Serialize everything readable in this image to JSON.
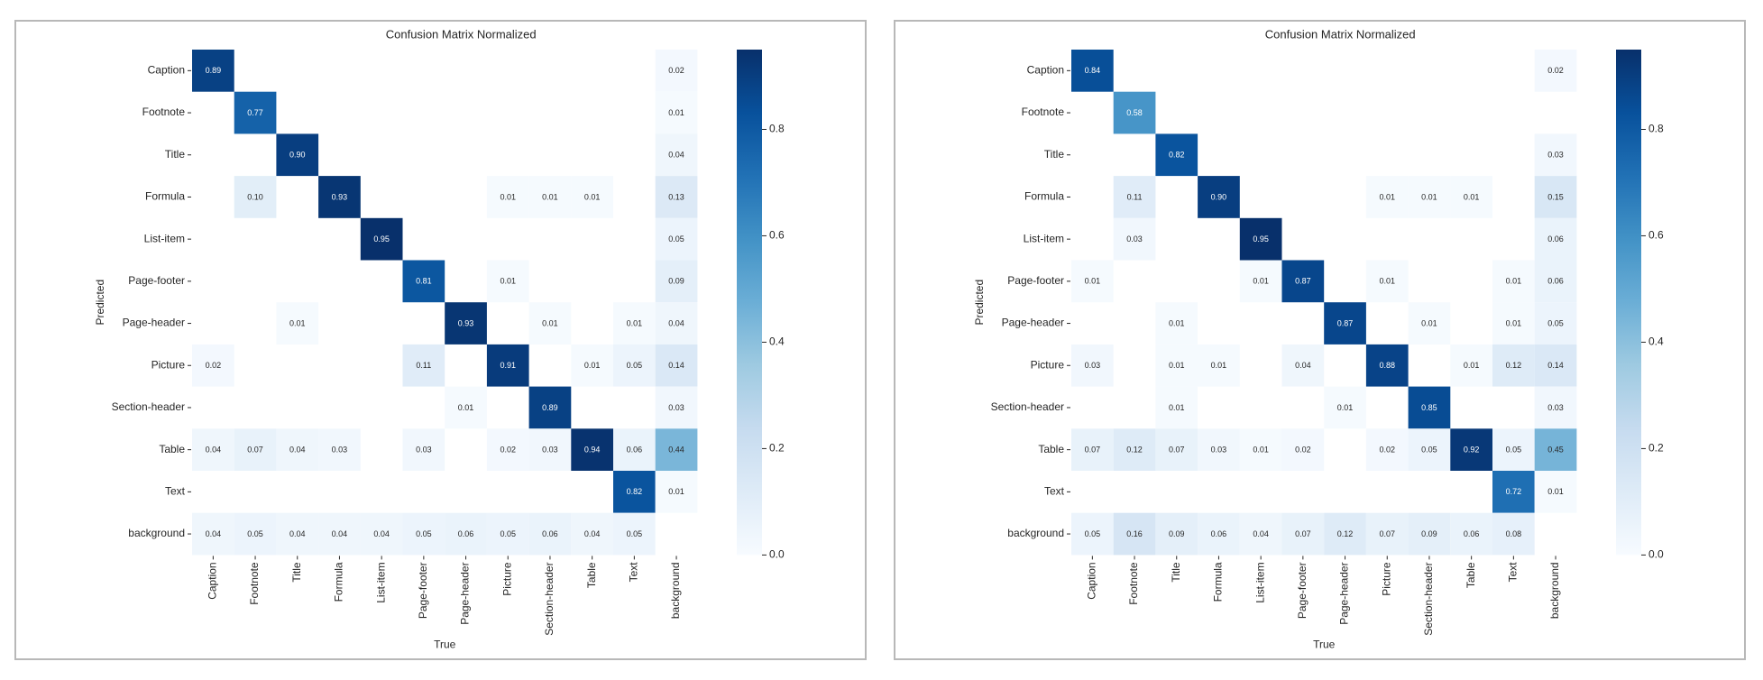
{
  "chart_data": [
    {
      "type": "heatmap",
      "title": "Confusion Matrix Normalized",
      "xlabel": "True",
      "ylabel": "Predicted",
      "x_categories": [
        "Caption",
        "Footnote",
        "Title",
        "Formula",
        "List-item",
        "Page-footer",
        "Page-header",
        "Picture",
        "Section-header",
        "Table",
        "Text",
        "background"
      ],
      "y_categories": [
        "Caption",
        "Footnote",
        "Title",
        "Formula",
        "List-item",
        "Page-footer",
        "Page-header",
        "Picture",
        "Section-header",
        "Table",
        "Text",
        "background"
      ],
      "colormap": "Blues",
      "colorbar": {
        "range": [
          0.0,
          0.95
        ],
        "ticks": [
          0.0,
          0.2,
          0.4,
          0.6,
          0.8
        ],
        "tick_labels": [
          "0.0",
          "0.2",
          "0.4",
          "0.6",
          "0.8"
        ]
      },
      "values": [
        [
          0.89,
          null,
          null,
          null,
          null,
          null,
          null,
          null,
          null,
          null,
          null,
          0.02
        ],
        [
          null,
          0.77,
          null,
          null,
          null,
          null,
          null,
          null,
          null,
          null,
          null,
          0.01
        ],
        [
          null,
          null,
          0.9,
          null,
          null,
          null,
          null,
          null,
          null,
          null,
          null,
          0.04
        ],
        [
          null,
          0.1,
          null,
          0.93,
          null,
          null,
          null,
          0.01,
          0.01,
          0.01,
          null,
          0.13
        ],
        [
          null,
          null,
          null,
          null,
          0.95,
          null,
          null,
          null,
          null,
          null,
          null,
          0.05
        ],
        [
          null,
          null,
          null,
          null,
          null,
          0.81,
          null,
          0.01,
          null,
          null,
          null,
          0.09
        ],
        [
          null,
          null,
          0.01,
          null,
          null,
          null,
          0.93,
          null,
          0.01,
          null,
          0.01,
          0.04
        ],
        [
          0.02,
          null,
          null,
          null,
          null,
          0.11,
          null,
          0.91,
          null,
          0.01,
          0.05,
          0.14
        ],
        [
          null,
          null,
          null,
          null,
          null,
          null,
          0.01,
          null,
          0.89,
          null,
          null,
          0.03
        ],
        [
          0.04,
          0.07,
          0.04,
          0.03,
          null,
          0.03,
          null,
          0.02,
          0.03,
          0.94,
          0.06,
          0.44
        ],
        [
          null,
          null,
          null,
          null,
          null,
          null,
          null,
          null,
          null,
          null,
          0.82,
          0.01
        ],
        [
          0.04,
          0.05,
          0.04,
          0.04,
          0.04,
          0.05,
          0.06,
          0.05,
          0.06,
          0.04,
          0.05,
          null
        ]
      ]
    },
    {
      "type": "heatmap",
      "title": "Confusion Matrix Normalized",
      "xlabel": "True",
      "ylabel": "Predicted",
      "x_categories": [
        "Caption",
        "Footnote",
        "Title",
        "Formula",
        "List-item",
        "Page-footer",
        "Page-header",
        "Picture",
        "Section-header",
        "Table",
        "Text",
        "background"
      ],
      "y_categories": [
        "Caption",
        "Footnote",
        "Title",
        "Formula",
        "List-item",
        "Page-footer",
        "Page-header",
        "Picture",
        "Section-header",
        "Table",
        "Text",
        "background"
      ],
      "colormap": "Blues",
      "colorbar": {
        "range": [
          0.0,
          0.95
        ],
        "ticks": [
          0.0,
          0.2,
          0.4,
          0.6,
          0.8
        ],
        "tick_labels": [
          "0.0",
          "0.2",
          "0.4",
          "0.6",
          "0.8"
        ]
      },
      "values": [
        [
          0.84,
          null,
          null,
          null,
          null,
          null,
          null,
          null,
          null,
          null,
          null,
          0.02
        ],
        [
          null,
          0.58,
          null,
          null,
          null,
          null,
          null,
          null,
          null,
          null,
          null,
          null
        ],
        [
          null,
          null,
          0.82,
          null,
          null,
          null,
          null,
          null,
          null,
          null,
          null,
          0.03
        ],
        [
          null,
          0.11,
          null,
          0.9,
          null,
          null,
          null,
          0.01,
          0.01,
          0.01,
          null,
          0.15
        ],
        [
          null,
          0.03,
          null,
          null,
          0.95,
          null,
          null,
          null,
          null,
          null,
          null,
          0.06
        ],
        [
          0.01,
          null,
          null,
          null,
          0.01,
          0.87,
          null,
          0.01,
          null,
          null,
          0.01,
          0.06
        ],
        [
          null,
          null,
          0.01,
          null,
          null,
          null,
          0.87,
          null,
          0.01,
          null,
          0.01,
          0.05
        ],
        [
          0.03,
          null,
          0.01,
          0.01,
          null,
          0.04,
          null,
          0.88,
          null,
          0.01,
          0.12,
          0.14
        ],
        [
          null,
          null,
          0.01,
          null,
          null,
          null,
          0.01,
          null,
          0.85,
          null,
          null,
          0.03
        ],
        [
          0.07,
          0.12,
          0.07,
          0.03,
          0.01,
          0.02,
          null,
          0.02,
          0.05,
          0.92,
          0.05,
          0.45
        ],
        [
          null,
          null,
          null,
          null,
          null,
          null,
          null,
          null,
          null,
          null,
          0.72,
          0.01
        ],
        [
          0.05,
          0.16,
          0.09,
          0.06,
          0.04,
          0.07,
          0.12,
          0.07,
          0.09,
          0.06,
          0.08,
          null
        ]
      ]
    }
  ]
}
